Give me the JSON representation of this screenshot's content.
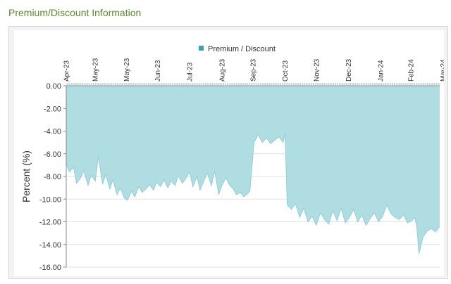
{
  "page": {
    "title": "Premium/Discount Information"
  },
  "chart_data": {
    "type": "area",
    "legend": {
      "label": "Premium / Discount",
      "position": "top-center"
    },
    "ylabel": "Percent (%)",
    "xlabel": "",
    "ylim": [
      -16,
      0
    ],
    "yticks": [
      0,
      -2,
      -4,
      -6,
      -8,
      -10,
      -12,
      -14,
      -16
    ],
    "ytick_labels": [
      "0.00",
      "-2.00",
      "-4.00",
      "-6.00",
      "-8.00",
      "-10.00",
      "-12.00",
      "-14.00",
      "-16.00"
    ],
    "xlim": [
      "2023-04-03",
      "2024-03-28"
    ],
    "xtick_labels": [
      {
        "label": "Apr-23",
        "date": "2023-04-03"
      },
      {
        "label": "May-23",
        "date": "2023-05-01"
      },
      {
        "label": "May-23",
        "date": "2023-05-31"
      },
      {
        "label": "Jun-23",
        "date": "2023-06-30"
      },
      {
        "label": "Jul-23",
        "date": "2023-07-31"
      },
      {
        "label": "Aug-23",
        "date": "2023-08-31"
      },
      {
        "label": "Sep-23",
        "date": "2023-09-30"
      },
      {
        "label": "Oct-23",
        "date": "2023-10-31"
      },
      {
        "label": "Nov-23",
        "date": "2023-11-30"
      },
      {
        "label": "Dec-23",
        "date": "2023-12-31"
      },
      {
        "label": "Jan-24",
        "date": "2024-01-31"
      },
      {
        "label": "Feb-24",
        "date": "2024-02-29"
      },
      {
        "label": "Mar-24",
        "date": "2024-03-31"
      }
    ],
    "grid": true,
    "colors": {
      "area": "#b0dde2",
      "line": "#8fcfd6",
      "legend_swatch": "#3d9fb7",
      "grid": "#e2e2e2"
    },
    "series": [
      {
        "name": "Premium / Discount",
        "x": [
          "2023-04-03",
          "2023-04-06",
          "2023-04-10",
          "2023-04-13",
          "2023-04-17",
          "2023-04-20",
          "2023-04-24",
          "2023-04-27",
          "2023-05-01",
          "2023-05-04",
          "2023-05-08",
          "2023-05-11",
          "2023-05-15",
          "2023-05-18",
          "2023-05-22",
          "2023-05-25",
          "2023-05-29",
          "2023-06-01",
          "2023-06-05",
          "2023-06-08",
          "2023-06-12",
          "2023-06-15",
          "2023-06-19",
          "2023-06-22",
          "2023-06-26",
          "2023-06-29",
          "2023-07-03",
          "2023-07-06",
          "2023-07-10",
          "2023-07-13",
          "2023-07-17",
          "2023-07-20",
          "2023-07-24",
          "2023-07-27",
          "2023-07-31",
          "2023-08-03",
          "2023-08-07",
          "2023-08-10",
          "2023-08-14",
          "2023-08-17",
          "2023-08-21",
          "2023-08-24",
          "2023-08-28",
          "2023-08-31",
          "2023-09-04",
          "2023-09-07",
          "2023-09-11",
          "2023-09-14",
          "2023-09-18",
          "2023-09-21",
          "2023-09-25",
          "2023-09-27",
          "2023-10-01",
          "2023-10-05",
          "2023-10-09",
          "2023-10-13",
          "2023-10-17",
          "2023-10-21",
          "2023-10-25",
          "2023-10-29",
          "2023-10-31",
          "2023-11-02",
          "2023-11-06",
          "2023-11-10",
          "2023-11-14",
          "2023-11-18",
          "2023-11-22",
          "2023-11-26",
          "2023-11-30",
          "2023-12-04",
          "2023-12-08",
          "2023-12-12",
          "2023-12-16",
          "2023-12-20",
          "2023-12-24",
          "2023-12-28",
          "2024-01-01",
          "2024-01-05",
          "2024-01-09",
          "2024-01-13",
          "2024-01-17",
          "2024-01-21",
          "2024-01-25",
          "2024-01-29",
          "2024-02-02",
          "2024-02-06",
          "2024-02-10",
          "2024-02-14",
          "2024-02-18",
          "2024-02-22",
          "2024-02-26",
          "2024-03-01",
          "2024-03-04",
          "2024-03-06",
          "2024-03-08",
          "2024-03-12",
          "2024-03-16",
          "2024-03-20",
          "2024-03-24",
          "2024-03-28"
        ],
        "values": [
          -6.9,
          -7.6,
          -7.2,
          -8.6,
          -8.1,
          -7.5,
          -8.8,
          -7.9,
          -8.4,
          -6.2,
          -8.7,
          -7.8,
          -9.1,
          -8.3,
          -9.6,
          -9.0,
          -9.9,
          -10.1,
          -9.3,
          -9.8,
          -8.9,
          -9.4,
          -9.1,
          -8.7,
          -9.2,
          -8.5,
          -8.9,
          -8.3,
          -9.0,
          -8.4,
          -8.8,
          -7.9,
          -8.6,
          -8.2,
          -7.6,
          -8.9,
          -8.0,
          -9.2,
          -8.3,
          -7.7,
          -8.8,
          -7.5,
          -9.6,
          -8.8,
          -8.1,
          -8.7,
          -9.1,
          -9.6,
          -9.4,
          -9.8,
          -9.5,
          -9.3,
          -5.0,
          -4.3,
          -5.0,
          -4.6,
          -5.1,
          -4.8,
          -4.5,
          -5.0,
          -4.2,
          -10.5,
          -10.9,
          -10.4,
          -11.6,
          -10.8,
          -12.0,
          -11.5,
          -12.3,
          -11.2,
          -11.8,
          -12.2,
          -11.0,
          -11.9,
          -10.8,
          -12.1,
          -11.6,
          -10.9,
          -12.0,
          -11.4,
          -12.3,
          -11.7,
          -11.2,
          -12.0,
          -11.5,
          -10.5,
          -11.3,
          -11.6,
          -11.8,
          -11.4,
          -12.1,
          -11.9,
          -11.6,
          -12.5,
          -14.8,
          -13.3,
          -12.8,
          -12.6,
          -12.9,
          -12.4
        ]
      }
    ]
  }
}
